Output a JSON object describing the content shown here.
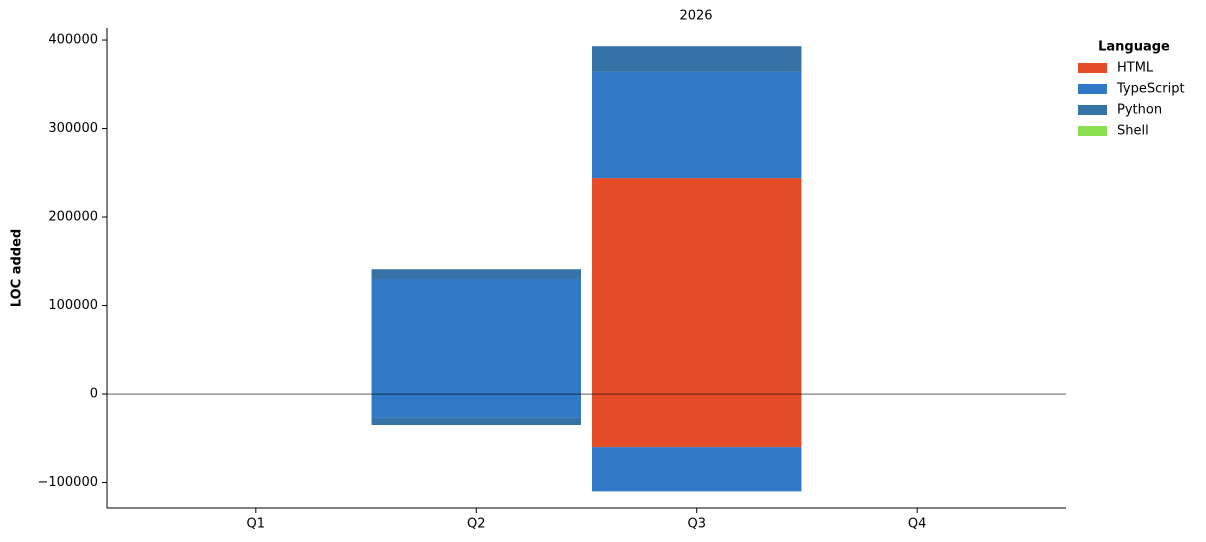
{
  "chart_data": {
    "type": "bar",
    "stacked": true,
    "title": "2026",
    "y_label": "LOC added",
    "legend_title": "Language",
    "legend_position": "upper right",
    "categories": [
      "Q1",
      "Q2",
      "Q3",
      "Q4"
    ],
    "series": [
      {
        "name": "HTML",
        "color": "#e34c26",
        "values": [
          null,
          null,
          244000,
          null
        ],
        "negative_values": [
          null,
          null,
          -60000,
          null
        ]
      },
      {
        "name": "TypeScript",
        "color": "#3178c6",
        "values": [
          null,
          130000,
          120000,
          null
        ],
        "negative_values": [
          null,
          -27000,
          -50000,
          null
        ]
      },
      {
        "name": "Python",
        "color": "#3572a5",
        "values": [
          null,
          11000,
          29000,
          null
        ],
        "negative_values": [
          null,
          -8000,
          null,
          null
        ]
      },
      {
        "name": "Shell",
        "color": "#89e051",
        "values": [
          null,
          null,
          null,
          null
        ],
        "negative_values": [
          null,
          null,
          null,
          null
        ]
      }
    ],
    "ylim": [
      -128800,
      413600
    ],
    "yticks": [
      {
        "value": -100000,
        "label": "−100000"
      },
      0,
      100000,
      200000,
      300000,
      400000
    ]
  }
}
